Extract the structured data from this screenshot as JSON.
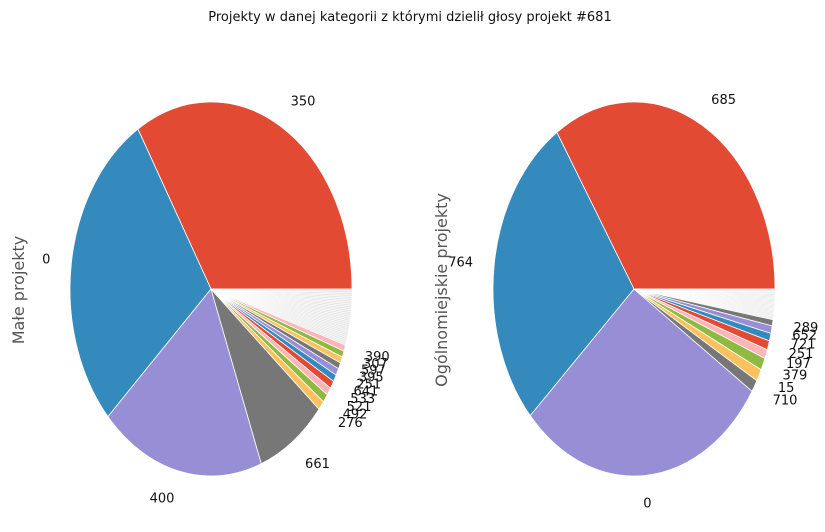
{
  "figure": {
    "title": "Projekty w danej kategorii z którymi dzielił głosy projekt #681"
  },
  "chart_data": [
    {
      "type": "pie",
      "ylabel": "Małe projekty",
      "labels": [
        "350",
        "0",
        "400",
        "661",
        "276",
        "492",
        "521",
        "533",
        "641",
        "251",
        "395",
        "597",
        "307",
        "390"
      ],
      "values": [
        25.0,
        21.0,
        14.0,
        6.0,
        0.6,
        0.55,
        0.5,
        0.5,
        0.45,
        0.45,
        0.4,
        0.4,
        0.4,
        0.4
      ],
      "tail": {
        "count": 30,
        "value_each": 0.12,
        "color": "#e8e8e8"
      },
      "colors": [
        "#E24A33",
        "#348ABD",
        "#988ED5",
        "#777777",
        "#FBC15E",
        "#8EBA42",
        "#FFB5B8",
        "#E24A33",
        "#348ABD",
        "#988ED5",
        "#777777",
        "#FBC15E",
        "#8EBA42",
        "#FFB5B8"
      ]
    },
    {
      "type": "pie",
      "ylabel": "Ogólnomiejskie projekty",
      "labels": [
        "685",
        "764",
        "0",
        "710",
        "15",
        "379",
        "197",
        "251",
        "721",
        "652",
        "289"
      ],
      "values": [
        26.0,
        21.0,
        22.0,
        0.8,
        0.8,
        0.8,
        0.6,
        0.6,
        0.5,
        0.5,
        0.4
      ],
      "tail": {
        "count": 25,
        "value_each": 0.08,
        "color": "#e8e8e8"
      },
      "colors": [
        "#E24A33",
        "#348ABD",
        "#988ED5",
        "#777777",
        "#FBC15E",
        "#8EBA42",
        "#FFB5B8",
        "#E24A33",
        "#348ABD",
        "#988ED5",
        "#777777"
      ]
    }
  ]
}
